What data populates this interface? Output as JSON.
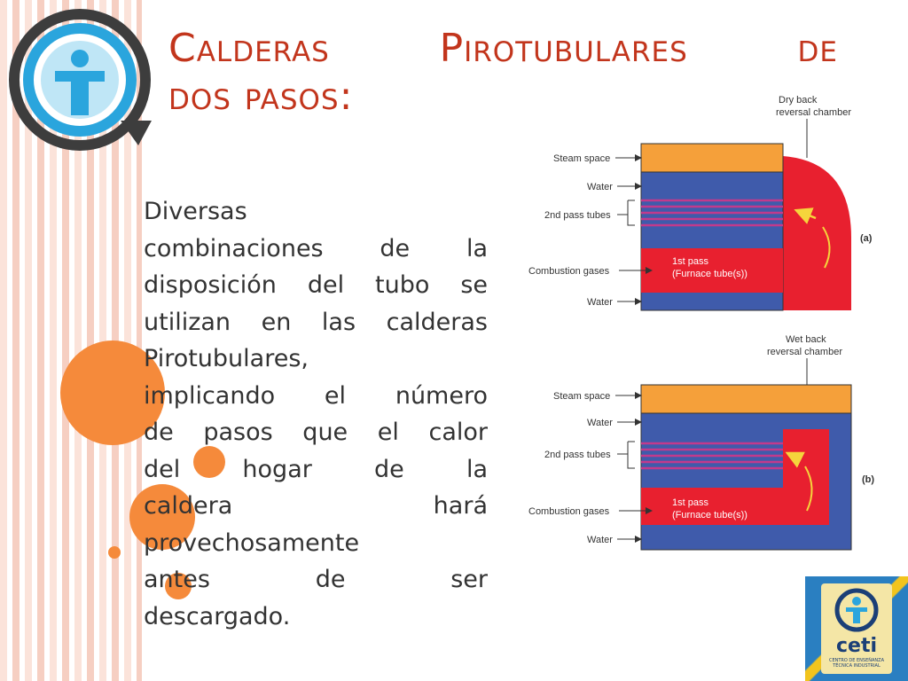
{
  "slide": {
    "title_line1": [
      "Calderas",
      "Pirotubulares",
      "de"
    ],
    "title_line2": "dos pasos:",
    "body_lines": [
      "Diversas",
      "combinaciones de la",
      "disposición del tubo se",
      "utilizan en las calderas",
      "Pirotubulares,",
      "implicando el número",
      "de pasos que el calor",
      "del hogar de la",
      "caldera hará",
      "provechosamente",
      "antes de ser",
      "descargado."
    ]
  },
  "diagram_a": {
    "chamber_label_1": "Dry back",
    "chamber_label_2": "reversal chamber",
    "labels": [
      "Steam space",
      "Water",
      "2nd pass tubes",
      "Combustion gases",
      "Water"
    ],
    "pass_label_1": "1st pass",
    "pass_label_2": "(Furnace tube(s))",
    "tag": "(a)"
  },
  "diagram_b": {
    "chamber_label_1": "Wet back",
    "chamber_label_2": "reversal chamber",
    "labels": [
      "Steam space",
      "Water",
      "2nd pass tubes",
      "Combustion gases",
      "Water"
    ],
    "pass_label_1": "1st pass",
    "pass_label_2": "(Furnace tube(s))",
    "tag": "(b)"
  },
  "logo": {
    "word": "ceti",
    "subtitle": "CENTRO DE ENSEÑANZA TÉCNICA INDUSTRIAL"
  },
  "colors": {
    "title": "#c2351c",
    "accent_orange": "#f58a3b",
    "steam": "#f5a03a",
    "water": "#3f5bab",
    "fire": "#e8202f"
  }
}
